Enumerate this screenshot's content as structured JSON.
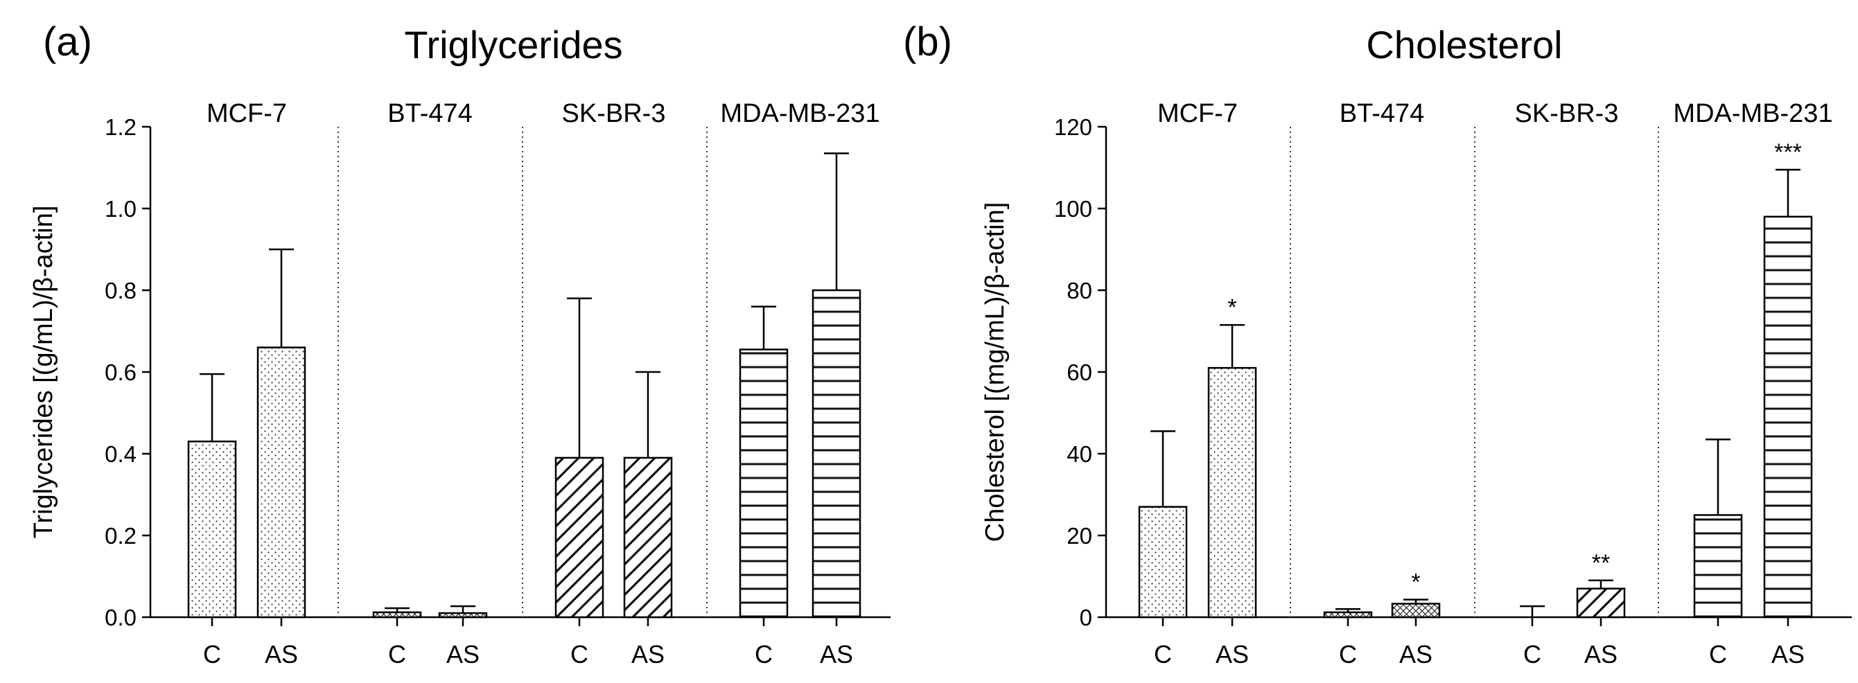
{
  "chart_data": [
    {
      "type": "bar",
      "panel_label": "(a)",
      "title": "Triglycerides",
      "ylabel": "Triglycerides [(g/mL)/β-actin]",
      "ylim": [
        0,
        1.2
      ],
      "yticks": [
        "0.0",
        "0.2",
        "0.4",
        "0.6",
        "0.8",
        "1.0",
        "1.2"
      ],
      "ytick_values": [
        0,
        0.2,
        0.4,
        0.6,
        0.8,
        1.0,
        1.2
      ],
      "groups": [
        {
          "name": "MCF-7",
          "pattern": "dots",
          "bars": [
            {
              "label": "C",
              "value": 0.43,
              "error": 0.165,
              "sig": ""
            },
            {
              "label": "AS",
              "value": 0.66,
              "error": 0.24,
              "sig": ""
            }
          ]
        },
        {
          "name": "BT-474",
          "pattern": "crosshatch",
          "bars": [
            {
              "label": "C",
              "value": 0.012,
              "error": 0.01,
              "sig": ""
            },
            {
              "label": "AS",
              "value": 0.01,
              "error": 0.017,
              "sig": ""
            }
          ]
        },
        {
          "name": "SK-BR-3",
          "pattern": "diagonal",
          "bars": [
            {
              "label": "C",
              "value": 0.39,
              "error": 0.39,
              "sig": ""
            },
            {
              "label": "AS",
              "value": 0.39,
              "error": 0.21,
              "sig": ""
            }
          ]
        },
        {
          "name": "MDA-MB-231",
          "pattern": "horizontal",
          "bars": [
            {
              "label": "C",
              "value": 0.655,
              "error": 0.105,
              "sig": ""
            },
            {
              "label": "AS",
              "value": 0.8,
              "error": 0.335,
              "sig": ""
            }
          ]
        }
      ]
    },
    {
      "type": "bar",
      "panel_label": "(b)",
      "title": "Cholesterol",
      "ylabel": "Cholesterol [(mg/mL)/β-actin]",
      "ylim": [
        0,
        120
      ],
      "yticks": [
        "0",
        "20",
        "40",
        "60",
        "80",
        "100",
        "120"
      ],
      "ytick_values": [
        0,
        20,
        40,
        60,
        80,
        100,
        120
      ],
      "groups": [
        {
          "name": "MCF-7",
          "pattern": "dots",
          "bars": [
            {
              "label": "C",
              "value": 27,
              "error": 18.5,
              "sig": ""
            },
            {
              "label": "AS",
              "value": 61,
              "error": 10.5,
              "sig": "*"
            }
          ]
        },
        {
          "name": "BT-474",
          "pattern": "crosshatch",
          "bars": [
            {
              "label": "C",
              "value": 1.2,
              "error": 0.8,
              "sig": ""
            },
            {
              "label": "AS",
              "value": 3.3,
              "error": 1.0,
              "sig": "*"
            }
          ]
        },
        {
          "name": "SK-BR-3",
          "pattern": "diagonal",
          "bars": [
            {
              "label": "C",
              "value": 0,
              "error": 2.7,
              "sig": ""
            },
            {
              "label": "AS",
              "value": 7.0,
              "error": 2.0,
              "sig": "**"
            }
          ]
        },
        {
          "name": "MDA-MB-231",
          "pattern": "horizontal",
          "bars": [
            {
              "label": "C",
              "value": 25,
              "error": 18.5,
              "sig": ""
            },
            {
              "label": "AS",
              "value": 98,
              "error": 11.5,
              "sig": "***"
            }
          ]
        }
      ]
    }
  ]
}
